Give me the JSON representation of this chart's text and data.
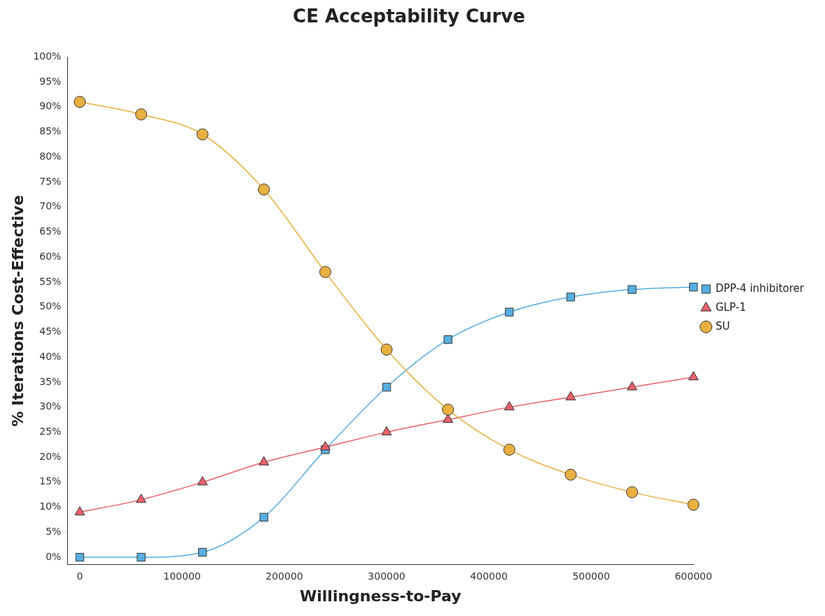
{
  "chart_data": {
    "type": "line",
    "title": "CE Acceptability Curve",
    "xlabel": "Willingness-to-Pay",
    "ylabel": "% Iterations Cost-Effective",
    "x": [
      0,
      60000,
      120000,
      180000,
      240000,
      300000,
      360000,
      420000,
      480000,
      540000,
      600000
    ],
    "xlim": [
      -12000,
      600000
    ],
    "xticks": [
      0,
      100000,
      200000,
      300000,
      400000,
      500000,
      600000
    ],
    "ylim": [
      -1.5,
      100
    ],
    "yticks": [
      {
        "value": 0,
        "label": "0%"
      },
      {
        "value": 5,
        "label": "5%"
      },
      {
        "value": 10,
        "label": "10%"
      },
      {
        "value": 15,
        "label": "15%"
      },
      {
        "value": 20,
        "label": "20%"
      },
      {
        "value": 25,
        "label": "25%"
      },
      {
        "value": 30,
        "label": "30%"
      },
      {
        "value": 35,
        "label": "35%"
      },
      {
        "value": 40,
        "label": "40%"
      },
      {
        "value": 45,
        "label": "45%"
      },
      {
        "value": 50,
        "label": "50%"
      },
      {
        "value": 55,
        "label": "55%"
      },
      {
        "value": 60,
        "label": "60%"
      },
      {
        "value": 65,
        "label": "65%"
      },
      {
        "value": 70,
        "label": "70%"
      },
      {
        "value": 75,
        "label": "75%"
      },
      {
        "value": 80,
        "label": "80%"
      },
      {
        "value": 85,
        "label": "85%"
      },
      {
        "value": 90,
        "label": "90%"
      },
      {
        "value": 95,
        "label": "95%"
      },
      {
        "value": 100,
        "label": "100%"
      }
    ],
    "grid": false,
    "legend": "right",
    "series": [
      {
        "name": "DPP-4 inhibitorer",
        "color": "#58aee0",
        "marker": "square",
        "values": [
          0,
          0,
          1,
          8,
          21.5,
          34,
          43.5,
          49,
          52,
          53.5,
          54
        ]
      },
      {
        "name": "GLP-1",
        "color": "#e8606a",
        "marker": "triangle",
        "values": [
          9,
          11.5,
          15,
          19,
          22,
          25,
          27.5,
          30,
          32,
          34,
          36
        ]
      },
      {
        "name": "SU",
        "color": "#e8b040",
        "marker": "circle",
        "values": [
          91,
          88.5,
          84.5,
          73.5,
          57,
          41.5,
          29.5,
          21.5,
          16.5,
          13,
          10.5
        ]
      }
    ]
  }
}
